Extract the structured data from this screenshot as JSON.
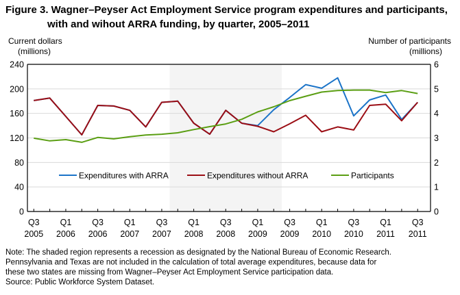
{
  "chart_data": {
    "type": "line",
    "title_line1": "Figure 3. Wagner–Peyser Act Employment Service program expenditures and participants,",
    "title_line2": "with and wihout ARRA funding, by quarter, 2005–2011",
    "ylabel_left_line1": "Current dollars",
    "ylabel_left_line2": "(millions)",
    "ylabel_right_line1": "Number of participants",
    "ylabel_right_line2": "(millions)",
    "ylim_left": [
      0,
      240
    ],
    "ylim_right": [
      0,
      6
    ],
    "yticks_left": [
      0,
      40,
      80,
      120,
      160,
      200,
      240
    ],
    "yticks_right": [
      0,
      1,
      2,
      3,
      4,
      5,
      6
    ],
    "grid": true,
    "legend_placement": "inside-bottom",
    "x": [
      "Q3 2005",
      "Q4 2005",
      "Q1 2006",
      "Q2 2006",
      "Q3 2006",
      "Q4 2006",
      "Q1 2007",
      "Q2 2007",
      "Q3 2007",
      "Q4 2007",
      "Q1 2008",
      "Q2 2008",
      "Q3 2008",
      "Q4 2008",
      "Q1 2009",
      "Q2 2009",
      "Q3 2009",
      "Q4 2009",
      "Q1 2010",
      "Q2 2010",
      "Q3 2010",
      "Q4 2010",
      "Q1 2011",
      "Q2 2011",
      "Q3 2011"
    ],
    "xtick_labels": [
      {
        "q": "Q3",
        "y": "2005"
      },
      {
        "q": "Q1",
        "y": "2006"
      },
      {
        "q": "Q3",
        "y": "2006"
      },
      {
        "q": "Q1",
        "y": "2007"
      },
      {
        "q": "Q3",
        "y": "2007"
      },
      {
        "q": "Q1",
        "y": "2008"
      },
      {
        "q": "Q3",
        "y": "2008"
      },
      {
        "q": "Q1",
        "y": "2009"
      },
      {
        "q": "Q3",
        "y": "2009"
      },
      {
        "q": "Q1",
        "y": "2010"
      },
      {
        "q": "Q3",
        "y": "2010"
      },
      {
        "q": "Q1",
        "y": "2011"
      },
      {
        "q": "Q3",
        "y": "2011"
      }
    ],
    "recession_shade": {
      "from": "Q4 2007",
      "to": "Q2 2009",
      "color": "#f4f4f4"
    },
    "series": [
      {
        "name": "Expenditures with ARRA",
        "axis": "left",
        "color": "#1a73c8",
        "values": [
          181,
          185,
          155,
          125,
          173,
          172,
          165,
          138,
          178,
          180,
          144,
          126,
          165,
          144,
          140,
          166,
          186,
          207,
          201,
          218,
          156,
          182,
          190,
          150,
          178
        ]
      },
      {
        "name": "Expenditures without ARRA",
        "axis": "left",
        "color": "#9b0d14",
        "values": [
          181,
          185,
          155,
          125,
          173,
          172,
          165,
          138,
          178,
          180,
          144,
          126,
          165,
          144,
          139,
          130,
          143,
          157,
          130,
          138,
          133,
          173,
          175,
          148,
          178
        ]
      },
      {
        "name": "Participants",
        "axis": "right",
        "color": "#5a9e12",
        "values": [
          2.99,
          2.88,
          2.93,
          2.82,
          3.02,
          2.96,
          3.05,
          3.12,
          3.15,
          3.21,
          3.34,
          3.46,
          3.57,
          3.76,
          4.06,
          4.27,
          4.52,
          4.7,
          4.87,
          4.93,
          4.95,
          4.95,
          4.85,
          4.93,
          4.81
        ]
      }
    ]
  },
  "notes": [
    "Note: The shaded region represents a recession as designated by the National Bureau of Economic Research.",
    "Pennsylvania and Texas are not included in the calculation of total average expenditures, because data for",
    "these two states are missing from Wagner–Peyser Act Employment Service participation data.",
    "Source: Public Workforce System Dataset."
  ]
}
